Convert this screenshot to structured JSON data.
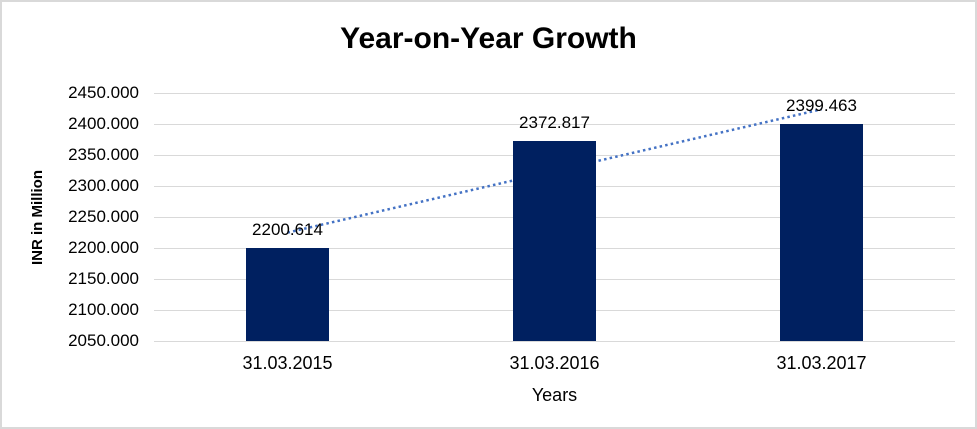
{
  "chart_data": {
    "type": "bar",
    "title": "Year-on-Year Growth",
    "categories": [
      "31.03.2015",
      "31.03.2016",
      "31.03.2017"
    ],
    "values": [
      2200.614,
      2372.817,
      2399.463
    ],
    "data_labels": [
      "2200.614",
      "2372.817",
      "2399.463"
    ],
    "xlabel": "Years",
    "ylabel": "INR in Million",
    "ylim": [
      2050,
      2450
    ],
    "ytick_step": 50,
    "ytick_labels": [
      "2050.000",
      "2100.000",
      "2150.000",
      "2200.000",
      "2250.000",
      "2300.000",
      "2350.000",
      "2400.000",
      "2450.000"
    ],
    "grid": true,
    "legend_position": "none",
    "colors": {
      "bar": "#002060",
      "trendline": "#4472c4",
      "gridline": "#d9d9d9",
      "text": "#000000"
    },
    "trendline": {
      "type": "linear",
      "style": "dotted",
      "endpoint_values": [
        2224.874,
        2423.722
      ]
    }
  }
}
